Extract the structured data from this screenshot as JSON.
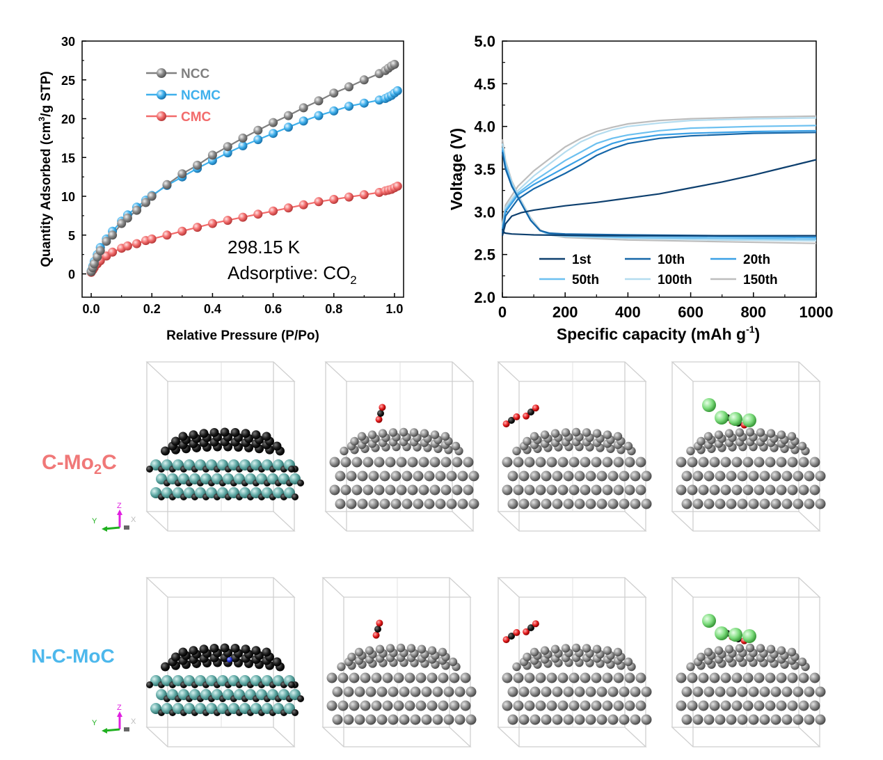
{
  "chart_data": [
    {
      "type": "scatter",
      "xlabel": "Relative Pressure (P/Po)",
      "ylabel_main": "Quantity Adsorbed (cm",
      "ylabel_sup": "3",
      "ylabel_tail": "/g STP)",
      "xlim": [
        -0.03,
        1.03
      ],
      "ylim": [
        -3,
        30
      ],
      "xticks": [
        0.0,
        0.2,
        0.4,
        0.6,
        0.8,
        1.0
      ],
      "xtick_labels": [
        "0.0",
        "0.2",
        "0.4",
        "0.6",
        "0.8",
        "1.0"
      ],
      "yticks": [
        0,
        5,
        10,
        15,
        20,
        25,
        30
      ],
      "ytick_labels": [
        "0",
        "5",
        "10",
        "15",
        "20",
        "25",
        "30"
      ],
      "legend_position": "top-left",
      "annotation_line1": "298.15 K",
      "annotation_line2_main": "Adsorptive: CO",
      "annotation_line2_sub": "2",
      "series": [
        {
          "name": "NCC",
          "color": "#808080",
          "x": [
            0.0,
            0.005,
            0.01,
            0.02,
            0.03,
            0.05,
            0.07,
            0.1,
            0.12,
            0.15,
            0.18,
            0.2,
            0.25,
            0.3,
            0.35,
            0.4,
            0.45,
            0.5,
            0.55,
            0.6,
            0.65,
            0.7,
            0.75,
            0.8,
            0.85,
            0.9,
            0.95,
            0.97,
            0.98,
            0.99,
            1.0
          ],
          "y": [
            0.3,
            0.8,
            1.3,
            2.2,
            3.0,
            4.2,
            5.0,
            6.5,
            7.2,
            8.2,
            9.2,
            10.0,
            11.5,
            12.9,
            14.0,
            15.3,
            16.4,
            17.5,
            18.5,
            19.5,
            20.4,
            21.4,
            22.3,
            23.3,
            24.1,
            25.0,
            25.8,
            26.2,
            26.5,
            26.8,
            27.0
          ]
        },
        {
          "name": "NCMC",
          "color": "#3fb0ec",
          "x": [
            0.0,
            0.005,
            0.01,
            0.02,
            0.03,
            0.05,
            0.07,
            0.1,
            0.12,
            0.15,
            0.18,
            0.2,
            0.25,
            0.3,
            0.35,
            0.4,
            0.45,
            0.5,
            0.55,
            0.6,
            0.65,
            0.7,
            0.75,
            0.8,
            0.85,
            0.9,
            0.95,
            0.97,
            0.98,
            0.99,
            1.0,
            1.01
          ],
          "y": [
            0.4,
            1.0,
            1.6,
            2.5,
            3.4,
            4.5,
            5.5,
            6.8,
            7.6,
            8.6,
            9.5,
            10.1,
            11.4,
            12.5,
            13.6,
            14.6,
            15.6,
            16.5,
            17.3,
            18.1,
            18.9,
            19.7,
            20.4,
            21.0,
            21.6,
            22.0,
            22.4,
            22.6,
            22.8,
            23.0,
            23.3,
            23.6
          ]
        },
        {
          "name": "CMC",
          "color": "#f26b6b",
          "x": [
            0.0,
            0.005,
            0.01,
            0.02,
            0.03,
            0.05,
            0.07,
            0.1,
            0.12,
            0.15,
            0.18,
            0.2,
            0.25,
            0.3,
            0.35,
            0.4,
            0.45,
            0.5,
            0.55,
            0.6,
            0.65,
            0.7,
            0.75,
            0.8,
            0.85,
            0.9,
            0.95,
            0.97,
            0.98,
            0.99,
            1.0,
            1.01
          ],
          "y": [
            0.2,
            0.5,
            0.8,
            1.3,
            1.7,
            2.3,
            2.8,
            3.3,
            3.6,
            3.9,
            4.3,
            4.5,
            5.0,
            5.5,
            6.0,
            6.5,
            6.9,
            7.3,
            7.7,
            8.1,
            8.5,
            8.9,
            9.3,
            9.6,
            9.9,
            10.2,
            10.5,
            10.7,
            10.8,
            10.9,
            11.1,
            11.3
          ]
        }
      ]
    },
    {
      "type": "line",
      "xlabel_main": "Specific capacity (mAh g",
      "xlabel_sup": "-1",
      "xlabel_tail": ")",
      "ylabel": "Voltage (V)",
      "xlim": [
        0,
        1000
      ],
      "ylim": [
        2.0,
        5.0
      ],
      "xticks": [
        0,
        200,
        400,
        600,
        800,
        1000
      ],
      "xtick_labels": [
        "0",
        "200",
        "400",
        "600",
        "800",
        "1000"
      ],
      "yticks": [
        2.0,
        2.5,
        3.0,
        3.5,
        4.0,
        4.5,
        5.0
      ],
      "ytick_labels": [
        "2.0",
        "2.5",
        "3.0",
        "3.5",
        "4.0",
        "4.5",
        "5.0"
      ],
      "legend_position": "bottom",
      "series": [
        {
          "name": "1st",
          "color": "#0d3f6e",
          "discharge_x": [
            0,
            5,
            10,
            30,
            100,
            300,
            600,
            1000
          ],
          "discharge_y": [
            2.8,
            2.76,
            2.75,
            2.74,
            2.73,
            2.72,
            2.72,
            2.72
          ],
          "charge_x": [
            0,
            10,
            30,
            60,
            100,
            200,
            300,
            400,
            500,
            600,
            700,
            800,
            900,
            1000
          ],
          "charge_y": [
            2.72,
            2.86,
            2.95,
            2.99,
            3.02,
            3.07,
            3.11,
            3.16,
            3.21,
            3.28,
            3.35,
            3.43,
            3.52,
            3.61
          ]
        },
        {
          "name": "10th",
          "color": "#1566a8",
          "discharge_x": [
            0,
            10,
            30,
            60,
            90,
            120,
            150,
            200,
            400,
            700,
            1000
          ],
          "discharge_y": [
            3.7,
            3.5,
            3.3,
            3.1,
            2.9,
            2.78,
            2.75,
            2.74,
            2.73,
            2.72,
            2.72
          ],
          "charge_x": [
            0,
            10,
            50,
            100,
            150,
            200,
            250,
            300,
            350,
            400,
            500,
            600,
            800,
            1000
          ],
          "charge_y": [
            2.75,
            2.95,
            3.15,
            3.27,
            3.36,
            3.45,
            3.55,
            3.66,
            3.74,
            3.8,
            3.86,
            3.89,
            3.92,
            3.93
          ]
        },
        {
          "name": "20th",
          "color": "#3aa0e6",
          "discharge_x": [
            0,
            10,
            30,
            60,
            90,
            120,
            150,
            200,
            400,
            700,
            1000
          ],
          "discharge_y": [
            3.72,
            3.52,
            3.3,
            3.1,
            2.9,
            2.78,
            2.75,
            2.73,
            2.72,
            2.71,
            2.7
          ],
          "charge_x": [
            0,
            10,
            50,
            100,
            150,
            200,
            250,
            300,
            350,
            400,
            500,
            600,
            800,
            1000
          ],
          "charge_y": [
            2.78,
            3.0,
            3.2,
            3.32,
            3.42,
            3.52,
            3.62,
            3.72,
            3.8,
            3.85,
            3.9,
            3.92,
            3.94,
            3.95
          ]
        },
        {
          "name": "50th",
          "color": "#6cc0f0",
          "discharge_x": [
            0,
            10,
            30,
            60,
            90,
            120,
            150,
            200,
            400,
            700,
            1000
          ],
          "discharge_y": [
            3.75,
            3.55,
            3.32,
            3.1,
            2.9,
            2.78,
            2.74,
            2.72,
            2.7,
            2.69,
            2.68
          ],
          "charge_x": [
            0,
            10,
            50,
            100,
            150,
            200,
            250,
            300,
            350,
            400,
            500,
            600,
            800,
            1000
          ],
          "charge_y": [
            2.8,
            3.02,
            3.22,
            3.36,
            3.48,
            3.6,
            3.7,
            3.8,
            3.86,
            3.9,
            3.95,
            3.98,
            4.0,
            4.01
          ]
        },
        {
          "name": "100th",
          "color": "#b4dcef",
          "discharge_x": [
            0,
            10,
            30,
            60,
            90,
            120,
            150,
            200,
            400,
            700,
            1000
          ],
          "discharge_y": [
            3.8,
            3.58,
            3.34,
            3.12,
            2.92,
            2.78,
            2.73,
            2.71,
            2.69,
            2.67,
            2.66
          ],
          "charge_x": [
            0,
            10,
            50,
            100,
            150,
            200,
            250,
            300,
            350,
            400,
            500,
            600,
            800,
            1000
          ],
          "charge_y": [
            2.82,
            3.05,
            3.25,
            3.42,
            3.56,
            3.7,
            3.82,
            3.9,
            3.96,
            4.0,
            4.04,
            4.07,
            4.09,
            4.1
          ]
        },
        {
          "name": "150th",
          "color": "#bdbdbd",
          "discharge_x": [
            0,
            10,
            30,
            60,
            90,
            120,
            150,
            200,
            400,
            700,
            1000
          ],
          "discharge_y": [
            3.85,
            3.6,
            3.36,
            3.13,
            2.93,
            2.79,
            2.73,
            2.7,
            2.67,
            2.65,
            2.63
          ],
          "charge_x": [
            0,
            10,
            50,
            100,
            150,
            200,
            250,
            300,
            350,
            400,
            500,
            600,
            800,
            1000
          ],
          "charge_y": [
            2.85,
            3.08,
            3.3,
            3.48,
            3.62,
            3.76,
            3.86,
            3.94,
            3.99,
            4.03,
            4.07,
            4.09,
            4.11,
            4.12
          ]
        }
      ]
    }
  ],
  "structures": {
    "row1_label_main": "C-Mo",
    "row1_label_sub": "2",
    "row1_label_tail": "C",
    "row2_label": "N-C-MoC",
    "axis_z": "Z",
    "axis_y": "Y",
    "axis_x": "X",
    "colors": {
      "carbon": "#1a1a1a",
      "molybdenum": "#5fa8a4",
      "gray_atom": "#888888",
      "oxygen": "#e41a1c",
      "chlorine": "#7ddc7d",
      "nitrogen": "#2233dd",
      "row1_label": "#f07878",
      "row2_label": "#4db8ec"
    }
  }
}
